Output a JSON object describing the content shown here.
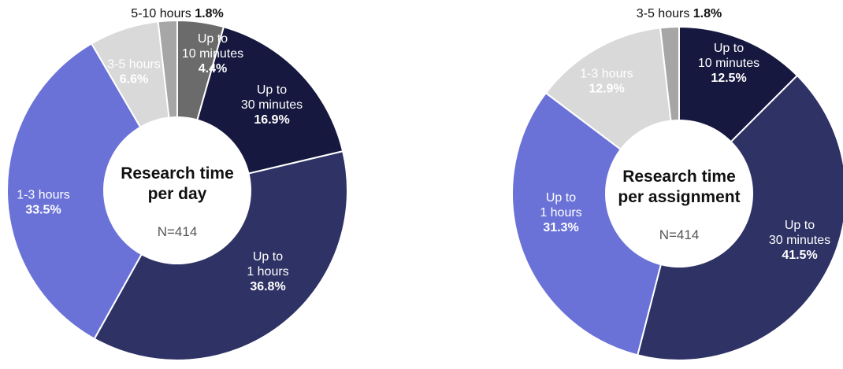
{
  "chart_data": [
    {
      "type": "pie",
      "title_lines": [
        "Research time",
        "per day"
      ],
      "n_label": "N=414",
      "slices": [
        {
          "label_lines": [
            "Up to",
            "10 minutes"
          ],
          "pct_text": "4.4%",
          "value": 4.4,
          "color": "#6b6b6b",
          "label_color": "#ffffff"
        },
        {
          "label_lines": [
            "Up to",
            "30 minutes"
          ],
          "pct_text": "16.9%",
          "value": 16.9,
          "color": "#16183f",
          "label_color": "#ffffff"
        },
        {
          "label_lines": [
            "Up to",
            "1 hours"
          ],
          "pct_text": "36.8%",
          "value": 36.8,
          "color": "#2e3264",
          "label_color": "#ffffff"
        },
        {
          "label_lines": [
            "1-3 hours"
          ],
          "pct_text": "33.5%",
          "value": 33.5,
          "color": "#6a72d8",
          "label_color": "#ffffff"
        },
        {
          "label_lines": [
            "3-5 hours"
          ],
          "pct_text": "6.6%",
          "value": 6.6,
          "color": "#d9d9d9",
          "label_color": "#ffffff"
        },
        {
          "label_lines": [
            "5-10 hours"
          ],
          "pct_text": "1.8%",
          "value": 1.8,
          "color": "#a6a6a6",
          "label_color": "#111111"
        }
      ]
    },
    {
      "type": "pie",
      "title_lines": [
        "Research time",
        "per assignment"
      ],
      "n_label": "N=414",
      "slices": [
        {
          "label_lines": [
            "Up to",
            "10 minutes"
          ],
          "pct_text": "12.5%",
          "value": 12.5,
          "color": "#16183f",
          "label_color": "#ffffff"
        },
        {
          "label_lines": [
            "Up to",
            "30 minutes"
          ],
          "pct_text": "41.5%",
          "value": 41.5,
          "color": "#2e3264",
          "label_color": "#ffffff"
        },
        {
          "label_lines": [
            "Up to",
            "1 hours"
          ],
          "pct_text": "31.3%",
          "value": 31.3,
          "color": "#6a72d8",
          "label_color": "#ffffff"
        },
        {
          "label_lines": [
            "1-3 hours"
          ],
          "pct_text": "12.9%",
          "value": 12.9,
          "color": "#d9d9d9",
          "label_color": "#ffffff"
        },
        {
          "label_lines": [
            "3-5 hours"
          ],
          "pct_text": "1.8%",
          "value": 1.8,
          "color": "#a6a6a6",
          "label_color": "#111111"
        }
      ]
    }
  ]
}
